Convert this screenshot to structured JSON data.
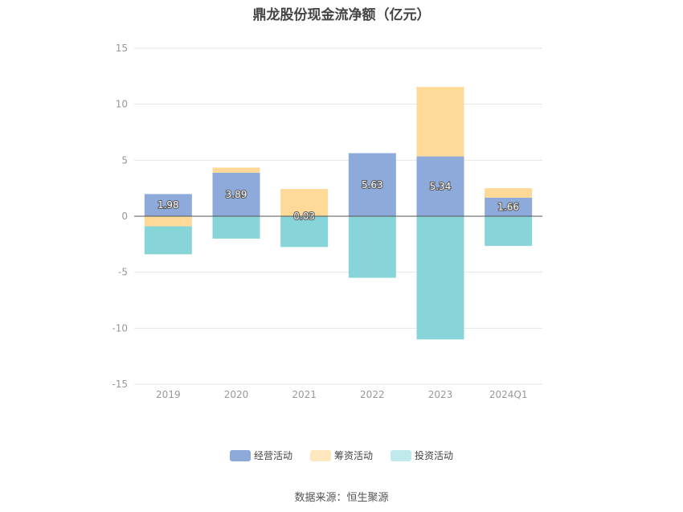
{
  "chart_data": {
    "type": "bar",
    "stacked": true,
    "title": "鼎龙股份现金流净额（亿元）",
    "categories": [
      "2019",
      "2020",
      "2021",
      "2022",
      "2023",
      "2024Q1"
    ],
    "series": [
      {
        "name": "经营活动",
        "color": "#8eaadb",
        "values": [
          1.98,
          3.89,
          0.03,
          5.63,
          5.34,
          1.66
        ]
      },
      {
        "name": "筹资活动",
        "color": "#ffd997",
        "values": [
          -0.9,
          0.45,
          2.4,
          0.0,
          6.2,
          0.85
        ]
      },
      {
        "name": "投资活动",
        "color": "#87d5d8",
        "values": [
          -2.5,
          -2.0,
          -2.75,
          -5.5,
          -11.0,
          -2.65
        ]
      }
    ],
    "data_labels_series": "经营活动",
    "ylim": [
      -15,
      15
    ],
    "yticks": [
      15,
      10,
      5,
      0,
      -5,
      -10,
      -15
    ],
    "grid": true,
    "legend_position": "bottom"
  },
  "source_text": "数据来源：恒生聚源"
}
